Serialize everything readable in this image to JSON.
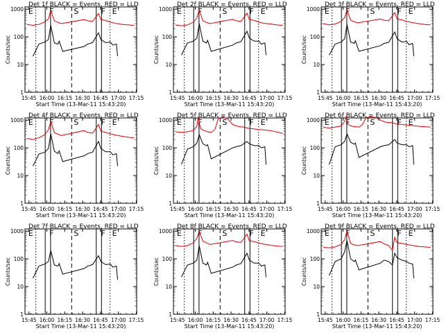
{
  "figure": {
    "background": "#ffffff",
    "events_color": "#000000",
    "lld_color": "#dd0000",
    "x_axis_label": "Start Time (13-Mar-11 15:43:20)",
    "y_axis_label": "Counts/sec",
    "x_ticks": [
      "15:45",
      "16:00",
      "16:15",
      "16:30",
      "16:45",
      "17:00",
      "17:15"
    ],
    "y_ticks": [
      "1",
      "10",
      "100",
      "1000"
    ],
    "y_scale": "log",
    "ylim": [
      1,
      1000
    ]
  },
  "chart_data": [
    {
      "type": "line",
      "title": "Det 1f BLACK = Events, RED = LLD",
      "xlabel": "Start Time (13-Mar-11 15:43:20)",
      "ylabel": "Counts/sec",
      "y_scale": "log",
      "xlim_minutes": [
        -1.67,
        92.0
      ],
      "ylim": [
        1,
        1200
      ],
      "markers": [
        "E",
        "F",
        "S",
        "F",
        "E"
      ],
      "series": [
        {
          "color": "#000000",
          "x": [
            5,
            10,
            15,
            18,
            20,
            23,
            26,
            27,
            30,
            48,
            51,
            55,
            60,
            62,
            66,
            70,
            72,
            75,
            76
          ],
          "y": [
            20,
            55,
            65,
            80,
            260,
            60,
            55,
            70,
            30,
            45,
            55,
            62,
            140,
            80,
            62,
            65,
            50,
            55,
            20
          ]
        },
        {
          "color": "#dd0000",
          "x": [
            0,
            5,
            10,
            15,
            18,
            20,
            23,
            26,
            29,
            48,
            51,
            55,
            60,
            62,
            66,
            70,
            74,
            80,
            85,
            90
          ],
          "y": [
            280,
            260,
            280,
            350,
            450,
            900,
            380,
            330,
            300,
            420,
            380,
            360,
            700,
            420,
            390,
            340,
            310,
            280,
            270,
            260
          ]
        }
      ]
    },
    {
      "type": "line",
      "title": "Det 2f BLACK = Events, RED = LLD",
      "xlabel": "Start Time (13-Mar-11 15:43:20)",
      "ylabel": "Counts/sec",
      "y_scale": "log",
      "xlim_minutes": [
        -1.67,
        92.0
      ],
      "ylim": [
        1,
        1200
      ],
      "markers": [
        "E",
        "F",
        "S",
        "F",
        "E"
      ],
      "series": [
        {
          "color": "#000000",
          "x": [
            5,
            10,
            15,
            18,
            20,
            23,
            26,
            27,
            30,
            48,
            51,
            55,
            60,
            62,
            66,
            70,
            72,
            75,
            76
          ],
          "y": [
            22,
            60,
            70,
            90,
            300,
            70,
            60,
            75,
            30,
            50,
            60,
            68,
            160,
            90,
            70,
            70,
            55,
            60,
            22
          ]
        },
        {
          "color": "#dd0000",
          "x": [
            0,
            5,
            10,
            15,
            18,
            20,
            23,
            26,
            29,
            48,
            51,
            55,
            60,
            62,
            66,
            70,
            74,
            80,
            85,
            90
          ],
          "y": [
            270,
            250,
            270,
            340,
            480,
            950,
            380,
            330,
            300,
            430,
            380,
            360,
            720,
            420,
            390,
            340,
            310,
            290,
            270,
            260
          ]
        }
      ]
    },
    {
      "type": "line",
      "title": "Det 3f BLACK = Events, RED = LLD",
      "xlabel": "Start Time (13-Mar-11 15:43:20)",
      "ylabel": "Counts/sec",
      "y_scale": "log",
      "xlim_minutes": [
        -1.67,
        92.0
      ],
      "ylim": [
        1,
        1200
      ],
      "markers": [
        "E",
        "F",
        "S",
        "F",
        "E"
      ],
      "series": [
        {
          "color": "#000000",
          "x": [
            5,
            10,
            15,
            18,
            20,
            23,
            26,
            27,
            30,
            48,
            51,
            55,
            60,
            62,
            66,
            70,
            72,
            75,
            76
          ],
          "y": [
            22,
            55,
            65,
            85,
            280,
            65,
            58,
            72,
            30,
            48,
            58,
            64,
            150,
            85,
            65,
            68,
            52,
            58,
            20
          ]
        },
        {
          "color": "#dd0000",
          "x": [
            0,
            5,
            10,
            15,
            18,
            20,
            23,
            26,
            29,
            48,
            51,
            55,
            60,
            62,
            66,
            70,
            74,
            80,
            85,
            90
          ],
          "y": [
            300,
            270,
            290,
            360,
            500,
            950,
            400,
            350,
            320,
            440,
            400,
            380,
            750,
            440,
            410,
            360,
            330,
            300,
            280,
            270
          ]
        }
      ]
    },
    {
      "type": "line",
      "title": "Det 4f BLACK = Events, RED = LLD",
      "xlabel": "Start Time (13-Mar-11 15:43:20)",
      "ylabel": "Counts/sec",
      "y_scale": "log",
      "xlim_minutes": [
        -1.67,
        92.0
      ],
      "ylim": [
        1,
        1200
      ],
      "markers": [
        "E",
        "F",
        "S",
        "F",
        "E"
      ],
      "series": [
        {
          "color": "#000000",
          "x": [
            5,
            10,
            15,
            18,
            20,
            23,
            26,
            27,
            30,
            48,
            51,
            55,
            60,
            62,
            66,
            70,
            72,
            75,
            76
          ],
          "y": [
            22,
            60,
            70,
            95,
            320,
            75,
            62,
            78,
            32,
            52,
            62,
            70,
            170,
            95,
            72,
            72,
            56,
            62,
            22
          ]
        },
        {
          "color": "#dd0000",
          "x": [
            0,
            5,
            10,
            15,
            18,
            20,
            23,
            26,
            29,
            48,
            51,
            55,
            60,
            62,
            66,
            70,
            74,
            80,
            85,
            90
          ],
          "y": [
            220,
            200,
            230,
            300,
            450,
            900,
            350,
            310,
            280,
            420,
            360,
            340,
            700,
            400,
            360,
            320,
            290,
            260,
            240,
            230
          ]
        }
      ]
    },
    {
      "type": "line",
      "title": "Det 5f BLACK = Events, RED = LLD",
      "xlabel": "Start Time (13-Mar-11 15:43:20)",
      "ylabel": "Counts/sec",
      "y_scale": "log",
      "xlim_minutes": [
        -1.67,
        92.0
      ],
      "ylim": [
        1,
        1200
      ],
      "markers": [
        "E",
        "F",
        "S",
        "F",
        "E"
      ],
      "series": [
        {
          "color": "#000000",
          "x": [
            5,
            10,
            15,
            18,
            20,
            23,
            26,
            27,
            30,
            48,
            51,
            55,
            60,
            62,
            66,
            70,
            72,
            75,
            76
          ],
          "y": [
            25,
            90,
            110,
            150,
            300,
            140,
            120,
            130,
            40,
            100,
            110,
            120,
            170,
            140,
            120,
            120,
            100,
            110,
            25
          ]
        },
        {
          "color": "#dd0000",
          "x": [
            0,
            5,
            10,
            15,
            18,
            19,
            21,
            24,
            27,
            30,
            33,
            36,
            40,
            44,
            48,
            52,
            58,
            62,
            66,
            72,
            80,
            90
          ],
          "y": [
            380,
            360,
            380,
            420,
            600,
            1300,
            500,
            420,
            380,
            360,
            450,
            1150,
            1300,
            1100,
            700,
            600,
            550,
            500,
            480,
            450,
            420,
            330
          ]
        }
      ]
    },
    {
      "type": "line",
      "title": "Det 6f BLACK = Events, RED = LLD",
      "xlabel": "Start Time (13-Mar-11 15:43:20)",
      "ylabel": "Counts/sec",
      "y_scale": "log",
      "xlim_minutes": [
        -1.67,
        92.0
      ],
      "ylim": [
        1,
        1200
      ],
      "markers": [
        "E",
        "F",
        "S",
        "F",
        "E"
      ],
      "series": [
        {
          "color": "#000000",
          "x": [
            5,
            10,
            15,
            18,
            20,
            23,
            26,
            27,
            30,
            48,
            51,
            55,
            60,
            62,
            66,
            70,
            72,
            75,
            76
          ],
          "y": [
            25,
            110,
            130,
            170,
            320,
            160,
            135,
            150,
            45,
            110,
            120,
            130,
            200,
            150,
            130,
            130,
            110,
            120,
            25
          ]
        },
        {
          "color": "#dd0000",
          "x": [
            0,
            5,
            10,
            15,
            18,
            19,
            21,
            24,
            27,
            30,
            33,
            36,
            40,
            44,
            48,
            52,
            58,
            62,
            66,
            72,
            80,
            90
          ],
          "y": [
            550,
            520,
            560,
            620,
            900,
            1300,
            700,
            600,
            580,
            560,
            700,
            1250,
            1300,
            1250,
            1000,
            850,
            800,
            720,
            700,
            650,
            600,
            560
          ]
        }
      ]
    },
    {
      "type": "line",
      "title": "Det 7f BLACK = Events, RED = LLD",
      "xlabel": "Start Time (13-Mar-11 15:43:20)",
      "ylabel": "Counts/sec",
      "y_scale": "log",
      "xlim_minutes": [
        -1.67,
        92.0
      ],
      "ylim": [
        1,
        1200
      ],
      "markers": [
        "E",
        "F",
        "S",
        "F",
        "E"
      ],
      "series": [
        {
          "color": "#000000",
          "x": [
            5,
            10,
            15,
            18,
            20,
            23,
            26,
            27,
            30,
            48,
            51,
            55,
            60,
            62,
            66,
            70,
            72,
            75,
            76
          ],
          "y": [
            20,
            55,
            65,
            80,
            200,
            60,
            55,
            68,
            28,
            45,
            55,
            62,
            130,
            80,
            62,
            65,
            50,
            55,
            18
          ]
        }
      ]
    },
    {
      "type": "line",
      "title": "Det 8f BLACK = Events, RED = LLD",
      "xlabel": "Start Time (13-Mar-11 15:43:20)",
      "ylabel": "Counts/sec",
      "y_scale": "log",
      "xlim_minutes": [
        -1.67,
        92.0
      ],
      "ylim": [
        1,
        1200
      ],
      "markers": [
        "E",
        "F",
        "S",
        "F",
        "E"
      ],
      "series": [
        {
          "color": "#000000",
          "x": [
            5,
            10,
            15,
            18,
            20,
            23,
            26,
            27,
            30,
            48,
            51,
            55,
            60,
            62,
            66,
            70,
            72,
            75,
            76
          ],
          "y": [
            22,
            60,
            70,
            90,
            300,
            70,
            60,
            75,
            30,
            50,
            60,
            68,
            160,
            90,
            70,
            70,
            55,
            60,
            22
          ]
        },
        {
          "color": "#dd0000",
          "x": [
            0,
            5,
            10,
            15,
            18,
            20,
            23,
            26,
            29,
            48,
            51,
            55,
            60,
            62,
            66,
            70,
            74,
            80,
            85,
            90
          ],
          "y": [
            300,
            280,
            300,
            380,
            550,
            1000,
            430,
            380,
            330,
            460,
            410,
            390,
            780,
            450,
            420,
            370,
            340,
            310,
            290,
            280
          ]
        }
      ]
    },
    {
      "type": "line",
      "title": "Det 9f BLACK = Events, RED = LLD",
      "xlabel": "Start Time (13-Mar-11 15:43:20)",
      "ylabel": "Counts/sec",
      "y_scale": "log",
      "xlim_minutes": [
        -1.67,
        92.0
      ],
      "ylim": [
        1,
        1200
      ],
      "markers": [
        "E",
        "F",
        "S",
        "F",
        "E"
      ],
      "series": [
        {
          "color": "#000000",
          "x": [
            5,
            10,
            15,
            18,
            20,
            23,
            26,
            27,
            30,
            48,
            51,
            55,
            58,
            60,
            62,
            66,
            70,
            72,
            75,
            76
          ],
          "y": [
            25,
            80,
            100,
            180,
            450,
            100,
            80,
            90,
            40,
            70,
            90,
            80,
            60,
            160,
            110,
            90,
            80,
            70,
            65,
            20
          ]
        },
        {
          "color": "#dd0000",
          "x": [
            0,
            5,
            10,
            15,
            18,
            20,
            23,
            26,
            29,
            48,
            51,
            55,
            58,
            60,
            62,
            66,
            70,
            74,
            80,
            85,
            90
          ],
          "y": [
            260,
            250,
            270,
            330,
            500,
            1000,
            360,
            320,
            300,
            420,
            350,
            300,
            200,
            600,
            380,
            360,
            330,
            310,
            280,
            270,
            260
          ]
        }
      ]
    }
  ]
}
